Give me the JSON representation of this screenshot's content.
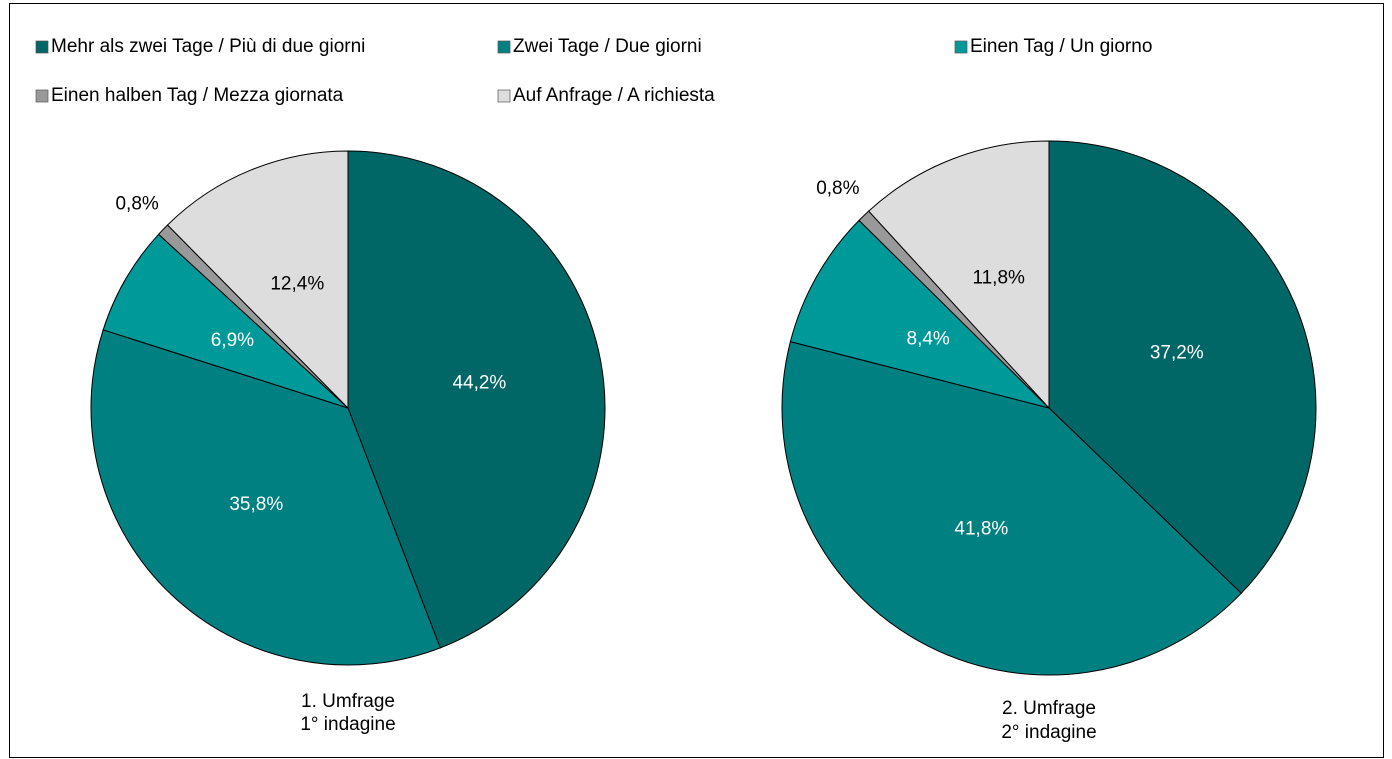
{
  "chart_data": {
    "type": "pie",
    "categories": [
      "Mehr als zwei Tage / Più di due giorni",
      "Zwei Tage / Due giorni",
      "Einen Tag / Un giorno",
      "Einen halben Tag / Mezza giornata",
      "Auf Anfrage / A richiesta"
    ],
    "colors": [
      "#006666",
      "#008080",
      "#009999",
      "#999999",
      "#dddddd"
    ],
    "label_colors": [
      "#ffffff",
      "#ffffff",
      "#ffffff",
      "#000000",
      "#000000"
    ],
    "series": [
      {
        "label": [
          "1. Umfrage",
          "1° indagine"
        ],
        "values": [
          44.2,
          35.8,
          6.9,
          0.8,
          12.4
        ],
        "value_labels": [
          "44,2%",
          "35,8%",
          "6,9%",
          "0,8%",
          "12,4%"
        ]
      },
      {
        "label": [
          "2. Umfrage",
          "2° indagine"
        ],
        "values": [
          37.2,
          41.8,
          8.4,
          0.8,
          11.8
        ],
        "value_labels": [
          "37,2%",
          "41,8%",
          "8,4%",
          "0,8%",
          "11,8%"
        ]
      }
    ]
  }
}
